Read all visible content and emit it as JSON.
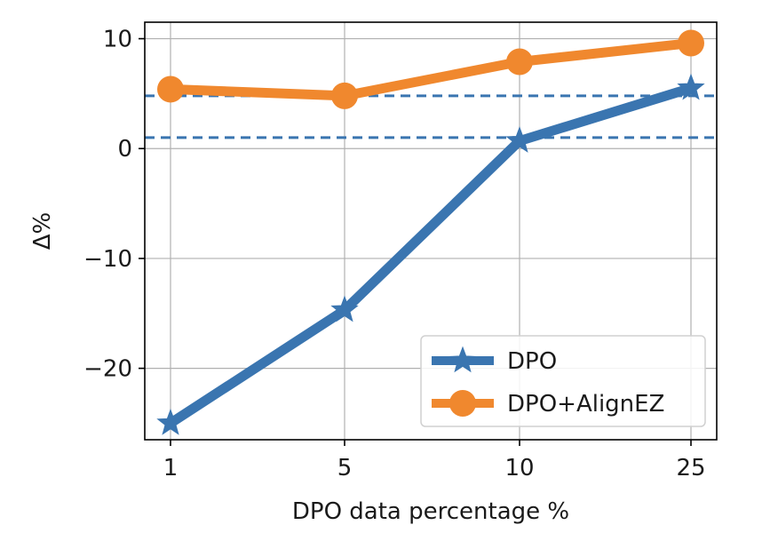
{
  "chart_data": {
    "type": "line",
    "title": "",
    "xlabel": "DPO data percentage %",
    "ylabel": "Δ%",
    "categories": [
      "1",
      "5",
      "10",
      "25"
    ],
    "ylim": [
      -26.5,
      11.5
    ],
    "yticks": [
      10,
      0,
      -10,
      -20
    ],
    "ytick_labels": [
      "10",
      "0",
      "−10",
      "−20"
    ],
    "grid": true,
    "legend_position": "lower-right",
    "series": [
      {
        "name": "DPO",
        "values": [
          -25.0,
          -14.7,
          0.7,
          5.5
        ],
        "color": "#3a75b0",
        "marker": "star"
      },
      {
        "name": "DPO+AlignEZ",
        "values": [
          5.4,
          4.8,
          7.9,
          9.6
        ],
        "color": "#f0882e",
        "marker": "circle"
      }
    ],
    "reference_lines": [
      {
        "y": 4.8,
        "color": "#3a75b0",
        "style": "dashed"
      },
      {
        "y": 1.0,
        "color": "#3a75b0",
        "style": "dashed"
      }
    ]
  }
}
